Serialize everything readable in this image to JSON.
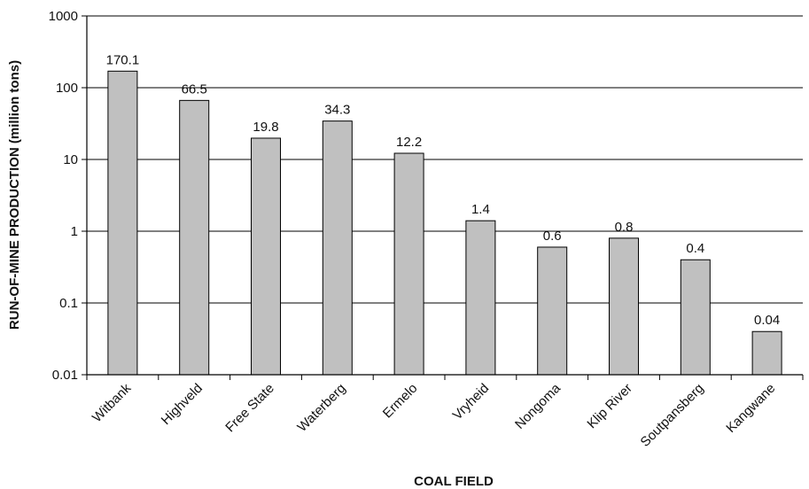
{
  "chart_data": {
    "type": "bar",
    "title": "",
    "xlabel": "COAL FIELD",
    "ylabel": "RUN-OF-MINE PRODUCTION (million tons)",
    "yscale": "log",
    "ylim": [
      0.01,
      1000
    ],
    "yticks": [
      1000,
      100,
      10,
      1,
      0.1,
      0.01
    ],
    "ytick_labels": [
      "1000",
      "100",
      "10",
      "1",
      "0.1",
      "0.01"
    ],
    "categories": [
      "Witbank",
      "Highveld",
      "Free State",
      "Waterberg",
      "Ermelo",
      "Vryheid",
      "Nongoma",
      "Klip River",
      "Soutpansberg",
      "Kangwane"
    ],
    "values": [
      170.1,
      66.5,
      19.8,
      34.3,
      12.2,
      1.4,
      0.6,
      0.8,
      0.4,
      0.04
    ],
    "data_labels": [
      "170.1",
      "66.5",
      "19.8",
      "34.3",
      "12.2",
      "1.4",
      "0.6",
      "0.8",
      "0.4",
      "0.04"
    ],
    "grid": "horizontal",
    "legend": "none",
    "bar_color": "#c0c0c0",
    "bar_edge_color": "#000000"
  }
}
